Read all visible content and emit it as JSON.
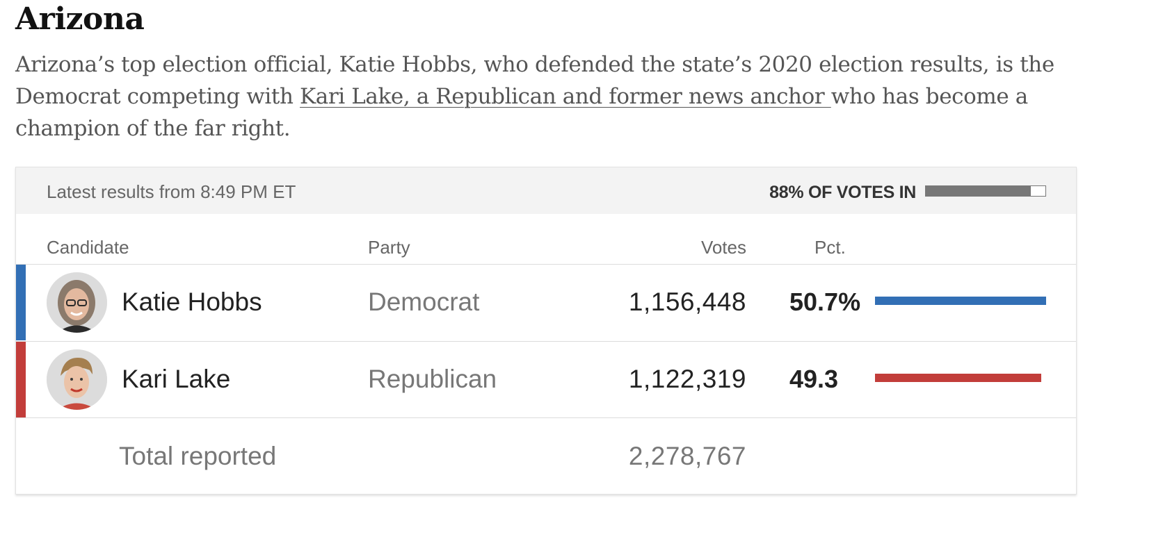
{
  "title": "Arizona",
  "intro": {
    "before_link": "Arizona’s top election official, Katie Hobbs, who defended the state’s 2020 election results, is the Democrat competing with ",
    "link_text": "Kari Lake, a Republican and former news anchor ",
    "after_link": "who has become a champion of the far right."
  },
  "results": {
    "updated": "Latest results from 8:49 PM ET",
    "votes_in_label": "88% OF VOTES IN",
    "votes_in_fraction": 0.88,
    "progress_color": "#777777",
    "columns": {
      "candidate": "Candidate",
      "party": "Party",
      "votes": "Votes",
      "pct": "Pct."
    },
    "candidates": [
      {
        "name": "Katie Hobbs",
        "party": "Democrat",
        "votes": "1,156,448",
        "pct_label": "50.7%",
        "pct": 50.7,
        "color": "#326fb5",
        "avatar_icon": "candidate-photo-icon"
      },
      {
        "name": "Kari Lake",
        "party": "Republican",
        "votes": "1,122,319",
        "pct_label": "49.3",
        "pct": 49.3,
        "color": "#c23d3a",
        "avatar_icon": "candidate-photo-icon"
      }
    ],
    "total": {
      "label": "Total reported",
      "votes": "2,278,767"
    }
  }
}
